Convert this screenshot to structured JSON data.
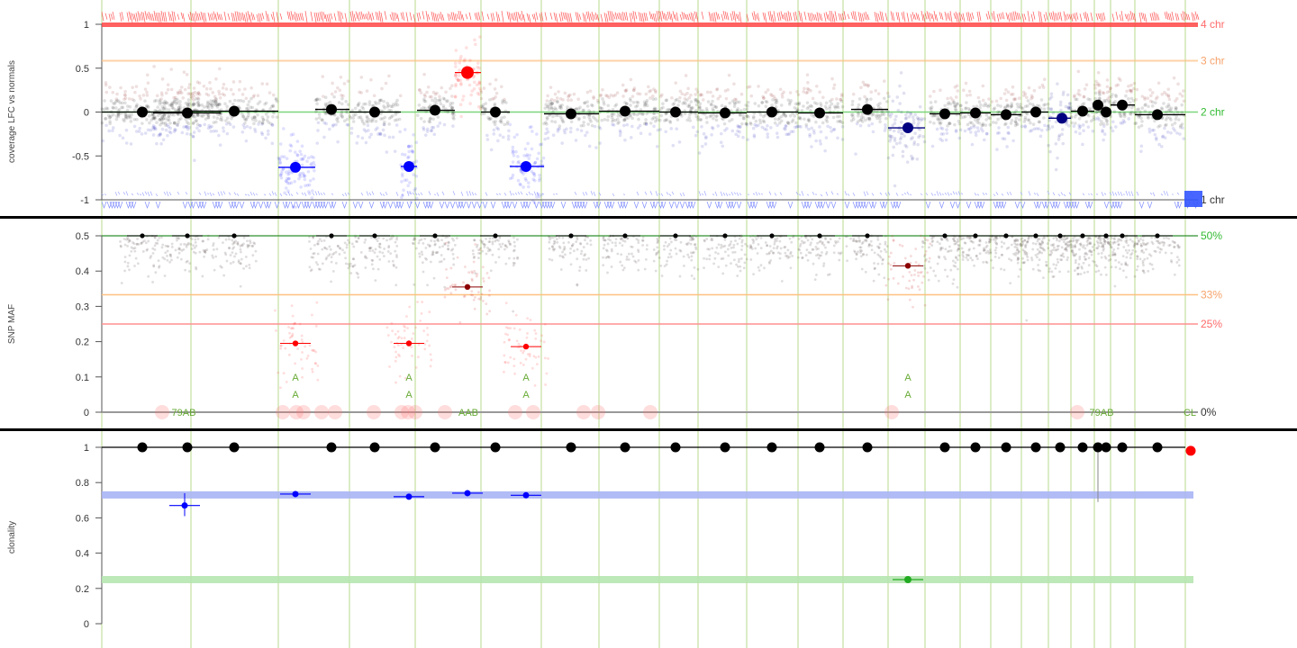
{
  "colors": {
    "chrom_line": "#b9d98e",
    "normal": "#000000",
    "loss": "#0000ff",
    "gain": "#ff0000",
    "gain_dark": "#8b0000",
    "sub_loss": "#000080",
    "green": "#33aa33",
    "orange": "#ffc080",
    "salmon": "#ff9090",
    "clone_blue": "#a8b4f5",
    "clone_green": "#b6e5b0",
    "label_green": "#66aa33",
    "label_orange": "#f08a4b",
    "label_red": "#ee3333",
    "label_green_bright": "#33bb33"
  },
  "chromosome_boundaries": [
    113,
    212,
    309,
    388,
    461,
    534,
    601,
    665,
    732,
    775,
    829,
    886,
    936,
    986,
    1027,
    1066,
    1100,
    1134,
    1164,
    1189,
    1215,
    1233,
    1260,
    1316
  ],
  "chart_data": [
    {
      "type": "scatter",
      "title": "",
      "ylabel": "coverage LFC vs normals",
      "ylim": [
        -1,
        1
      ],
      "yticks": [
        "-1",
        "-0.5",
        "0",
        "0.5",
        "1"
      ],
      "ytick_values": [
        -1,
        -0.5,
        0,
        0.5,
        1
      ],
      "reference_lines": [
        {
          "y": 1.0,
          "label": "4 chr",
          "color": "#ff6b6b"
        },
        {
          "y": 0.585,
          "label": "3 chr",
          "color": "#f6a36c"
        },
        {
          "y": 0.0,
          "label": "2 chr",
          "color": "#33bb33"
        },
        {
          "y": -1.0,
          "label": "1 chr",
          "color": "#333333"
        }
      ],
      "segments": [
        {
          "x0": 113,
          "x1": 212,
          "center": 158,
          "y": 0.0,
          "call": "normal"
        },
        {
          "x0": 170,
          "x1": 245,
          "center": 208,
          "y": -0.01,
          "call": "normal"
        },
        {
          "x0": 212,
          "x1": 309,
          "center": 260,
          "y": 0.01,
          "call": "normal"
        },
        {
          "x0": 309,
          "x1": 350,
          "center": 328,
          "y": -0.63,
          "call": "loss"
        },
        {
          "x0": 350,
          "x1": 388,
          "center": 368,
          "y": 0.03,
          "call": "normal"
        },
        {
          "x0": 388,
          "x1": 445,
          "center": 416,
          "y": 0.0,
          "call": "normal"
        },
        {
          "x0": 445,
          "x1": 463,
          "center": 454,
          "y": -0.62,
          "call": "loss"
        },
        {
          "x0": 463,
          "x1": 505,
          "center": 483,
          "y": 0.02,
          "call": "normal"
        },
        {
          "x0": 505,
          "x1": 534,
          "center": 519,
          "y": 0.45,
          "call": "gain"
        },
        {
          "x0": 534,
          "x1": 566,
          "center": 550,
          "y": 0.0,
          "call": "normal"
        },
        {
          "x0": 566,
          "x1": 604,
          "center": 584,
          "y": -0.62,
          "call": "loss"
        },
        {
          "x0": 604,
          "x1": 665,
          "center": 634,
          "y": -0.02,
          "call": "normal"
        },
        {
          "x0": 665,
          "x1": 732,
          "center": 694,
          "y": 0.01,
          "call": "normal"
        },
        {
          "x0": 732,
          "x1": 775,
          "center": 750,
          "y": 0.0,
          "call": "normal"
        },
        {
          "x0": 775,
          "x1": 829,
          "center": 805,
          "y": -0.01,
          "call": "normal"
        },
        {
          "x0": 829,
          "x1": 886,
          "center": 857,
          "y": 0.0,
          "call": "normal"
        },
        {
          "x0": 886,
          "x1": 936,
          "center": 910,
          "y": -0.01,
          "call": "normal"
        },
        {
          "x0": 945,
          "x1": 986,
          "center": 963,
          "y": 0.03,
          "call": "normal"
        },
        {
          "x0": 986,
          "x1": 1027,
          "center": 1008,
          "y": -0.18,
          "call": "sub_loss"
        },
        {
          "x0": 1032,
          "x1": 1066,
          "center": 1049,
          "y": -0.02,
          "call": "normal"
        },
        {
          "x0": 1066,
          "x1": 1100,
          "center": 1083,
          "y": -0.01,
          "call": "normal"
        },
        {
          "x0": 1100,
          "x1": 1134,
          "center": 1117,
          "y": -0.03,
          "call": "normal"
        },
        {
          "x0": 1134,
          "x1": 1164,
          "center": 1150,
          "y": 0.0,
          "call": "normal"
        },
        {
          "x0": 1164,
          "x1": 1189,
          "center": 1179,
          "y": -0.07,
          "call": "sub_loss"
        },
        {
          "x0": 1189,
          "x1": 1215,
          "center": 1202,
          "y": 0.01,
          "call": "normal"
        },
        {
          "x0": 1215,
          "x1": 1222,
          "center": 1219,
          "y": 0.08,
          "call": "normal"
        },
        {
          "x0": 1222,
          "x1": 1233,
          "center": 1228,
          "y": 0.0,
          "call": "normal"
        },
        {
          "x0": 1233,
          "x1": 1260,
          "center": 1246,
          "y": 0.08,
          "call": "normal"
        },
        {
          "x0": 1260,
          "x1": 1316,
          "center": 1285,
          "y": -0.03,
          "call": "normal"
        }
      ]
    },
    {
      "type": "scatter",
      "title": "",
      "ylabel": "SNP MAF",
      "ylim": [
        0,
        0.5
      ],
      "yticks": [
        "0",
        "0.1",
        "0.2",
        "0.3",
        "0.4",
        "0.5"
      ],
      "ytick_values": [
        0,
        0.1,
        0.2,
        0.3,
        0.4,
        0.5
      ],
      "reference_lines": [
        {
          "y": 0.5,
          "label": "50%",
          "color": "#33bb33"
        },
        {
          "y": 0.333,
          "label": "33%",
          "color": "#f6a36c"
        },
        {
          "y": 0.25,
          "label": "25%",
          "color": "#ff6b6b"
        },
        {
          "y": 0.0,
          "label": "0%",
          "color": "#333333"
        }
      ],
      "segment_maf": [
        {
          "x": 158,
          "y": 0.5,
          "call": "normal"
        },
        {
          "x": 208,
          "y": 0.5,
          "call": "normal"
        },
        {
          "x": 260,
          "y": 0.5,
          "call": "normal"
        },
        {
          "x": 328,
          "y": 0.195,
          "call": "gain"
        },
        {
          "x": 368,
          "y": 0.5,
          "call": "normal"
        },
        {
          "x": 416,
          "y": 0.5,
          "call": "normal"
        },
        {
          "x": 454,
          "y": 0.195,
          "call": "gain"
        },
        {
          "x": 483,
          "y": 0.5,
          "call": "normal"
        },
        {
          "x": 519,
          "y": 0.355,
          "call": "gain_dark"
        },
        {
          "x": 550,
          "y": 0.5,
          "call": "normal"
        },
        {
          "x": 584,
          "y": 0.186,
          "call": "gain"
        },
        {
          "x": 634,
          "y": 0.5,
          "call": "normal"
        },
        {
          "x": 694,
          "y": 0.5,
          "call": "normal"
        },
        {
          "x": 750,
          "y": 0.5,
          "call": "normal"
        },
        {
          "x": 805,
          "y": 0.5,
          "call": "normal"
        },
        {
          "x": 857,
          "y": 0.5,
          "call": "normal"
        },
        {
          "x": 910,
          "y": 0.5,
          "call": "normal"
        },
        {
          "x": 963,
          "y": 0.5,
          "call": "normal"
        },
        {
          "x": 1008,
          "y": 0.415,
          "call": "gain_dark"
        },
        {
          "x": 1049,
          "y": 0.5,
          "call": "normal"
        },
        {
          "x": 1083,
          "y": 0.5,
          "call": "normal"
        },
        {
          "x": 1117,
          "y": 0.5,
          "call": "normal"
        },
        {
          "x": 1150,
          "y": 0.5,
          "call": "normal"
        },
        {
          "x": 1177,
          "y": 0.5,
          "call": "normal"
        },
        {
          "x": 1202,
          "y": 0.5,
          "call": "normal"
        },
        {
          "x": 1228,
          "y": 0.5,
          "call": "normal"
        },
        {
          "x": 1246,
          "y": 0.5,
          "call": "normal"
        },
        {
          "x": 1285,
          "y": 0.5,
          "call": "normal"
        }
      ],
      "annotations": [
        {
          "text": "A",
          "x": 328
        },
        {
          "text": "A",
          "x": 454
        },
        {
          "text": "A",
          "x": 584
        },
        {
          "text": "A",
          "x": 1008
        }
      ],
      "bottom_annotations": [
        {
          "text": "79AB",
          "x": 204
        },
        {
          "text": "AAB",
          "x": 520
        },
        {
          "text": "79AB",
          "x": 1223
        },
        {
          "text": "CL",
          "x": 1321
        }
      ],
      "loh_markers": [
        180,
        314,
        329,
        337,
        357,
        372,
        415,
        446,
        453,
        461,
        494,
        572,
        592,
        648,
        664,
        722,
        990,
        1196
      ]
    },
    {
      "type": "scatter",
      "title": "",
      "ylabel": "clonality",
      "ylim": [
        0,
        1
      ],
      "yticks": [
        "0",
        "0.2",
        "0.4",
        "0.6",
        "0.8",
        "1"
      ],
      "ytick_values": [
        0,
        0.2,
        0.4,
        0.6,
        0.8,
        1
      ],
      "clone_bands": [
        {
          "y": 0.73,
          "color": "#a8b4f5"
        },
        {
          "y": 0.25,
          "color": "#b6e5b0"
        }
      ],
      "points": [
        {
          "x": 158,
          "y": 1.0,
          "call": "normal"
        },
        {
          "x": 205,
          "y": 0.67,
          "call": "loss",
          "err": [
            0.61,
            0.74
          ]
        },
        {
          "x": 208,
          "y": 1.0,
          "call": "normal"
        },
        {
          "x": 260,
          "y": 1.0,
          "call": "normal"
        },
        {
          "x": 328,
          "y": 0.735,
          "call": "loss"
        },
        {
          "x": 368,
          "y": 1.0,
          "call": "normal"
        },
        {
          "x": 416,
          "y": 1.0,
          "call": "normal"
        },
        {
          "x": 454,
          "y": 0.72,
          "call": "loss"
        },
        {
          "x": 483,
          "y": 1.0,
          "call": "normal"
        },
        {
          "x": 519,
          "y": 0.74,
          "call": "loss"
        },
        {
          "x": 550,
          "y": 1.0,
          "call": "normal"
        },
        {
          "x": 584,
          "y": 0.728,
          "call": "loss"
        },
        {
          "x": 634,
          "y": 1.0,
          "call": "normal"
        },
        {
          "x": 694,
          "y": 1.0,
          "call": "normal"
        },
        {
          "x": 750,
          "y": 1.0,
          "call": "normal"
        },
        {
          "x": 805,
          "y": 1.0,
          "call": "normal"
        },
        {
          "x": 857,
          "y": 1.0,
          "call": "normal"
        },
        {
          "x": 910,
          "y": 1.0,
          "call": "normal"
        },
        {
          "x": 963,
          "y": 1.0,
          "call": "normal"
        },
        {
          "x": 1008,
          "y": 0.25,
          "call": "green"
        },
        {
          "x": 1049,
          "y": 1.0,
          "call": "normal"
        },
        {
          "x": 1083,
          "y": 1.0,
          "call": "normal"
        },
        {
          "x": 1117,
          "y": 1.0,
          "call": "normal"
        },
        {
          "x": 1150,
          "y": 1.0,
          "call": "normal"
        },
        {
          "x": 1177,
          "y": 1.0,
          "call": "normal"
        },
        {
          "x": 1202,
          "y": 1.0,
          "call": "normal"
        },
        {
          "x": 1219,
          "y": 1.0,
          "call": "normal",
          "err": [
            0.69,
            1.0
          ]
        },
        {
          "x": 1228,
          "y": 1.0,
          "call": "normal"
        },
        {
          "x": 1246,
          "y": 1.0,
          "call": "normal"
        },
        {
          "x": 1285,
          "y": 1.0,
          "call": "normal"
        },
        {
          "x": 1322,
          "y": 0.98,
          "call": "gain"
        }
      ]
    }
  ]
}
